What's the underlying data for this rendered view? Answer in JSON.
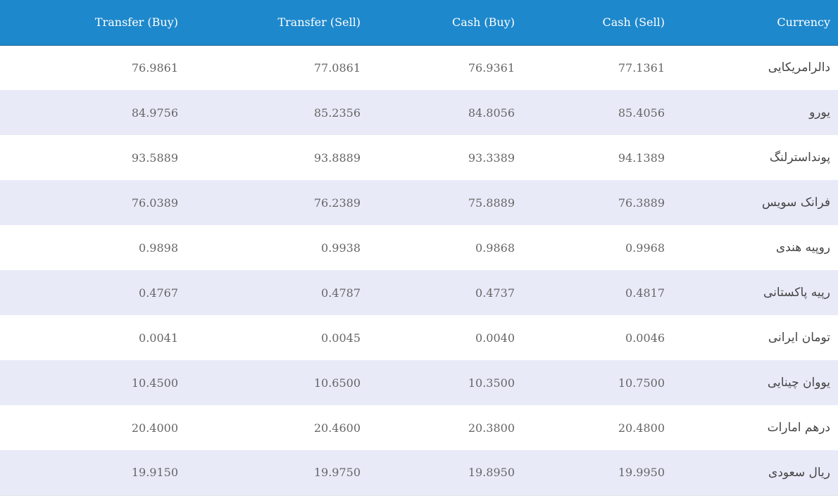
{
  "table": {
    "headers": {
      "transfer_buy": "Transfer (Buy)",
      "transfer_sell": "Transfer (Sell)",
      "cash_buy": "Cash (Buy)",
      "cash_sell": "Cash (Sell)",
      "currency": "Currency"
    },
    "rows": [
      {
        "transfer_buy": "76.9861",
        "transfer_sell": "77.0861",
        "cash_buy": "76.9361",
        "cash_sell": "77.1361",
        "currency": "دالرامریکایی"
      },
      {
        "transfer_buy": "84.9756",
        "transfer_sell": "85.2356",
        "cash_buy": "84.8056",
        "cash_sell": "85.4056",
        "currency": "یورو"
      },
      {
        "transfer_buy": "93.5889",
        "transfer_sell": "93.8889",
        "cash_buy": "93.3389",
        "cash_sell": "94.1389",
        "currency": "پونداسترلنگ"
      },
      {
        "transfer_buy": "76.0389",
        "transfer_sell": "76.2389",
        "cash_buy": "75.8889",
        "cash_sell": "76.3889",
        "currency": "فرانک سویس"
      },
      {
        "transfer_buy": "0.9898",
        "transfer_sell": "0.9938",
        "cash_buy": "0.9868",
        "cash_sell": "0.9968",
        "currency": "روپیه هندی"
      },
      {
        "transfer_buy": "0.4767",
        "transfer_sell": "0.4787",
        "cash_buy": "0.4737",
        "cash_sell": "0.4817",
        "currency": "رپیه پاکستانی"
      },
      {
        "transfer_buy": "0.0041",
        "transfer_sell": "0.0045",
        "cash_buy": "0.0040",
        "cash_sell": "0.0046",
        "currency": "تومان ایرانی"
      },
      {
        "transfer_buy": "10.4500",
        "transfer_sell": "10.6500",
        "cash_buy": "10.3500",
        "cash_sell": "10.7500",
        "currency": "یووان چینایی"
      },
      {
        "transfer_buy": "20.4000",
        "transfer_sell": "20.4600",
        "cash_buy": "20.3800",
        "cash_sell": "20.4800",
        "currency": "درهم امارات"
      },
      {
        "transfer_buy": "19.9150",
        "transfer_sell": "19.9750",
        "cash_buy": "19.8950",
        "cash_sell": "19.9950",
        "currency": "ریال سعودی"
      }
    ]
  },
  "colors": {
    "header_bg": "#1e88cc",
    "header_text": "#ffffff",
    "row_even_bg": "#ffffff",
    "row_odd_bg": "#e8eaf8",
    "cell_text": "#666666"
  }
}
